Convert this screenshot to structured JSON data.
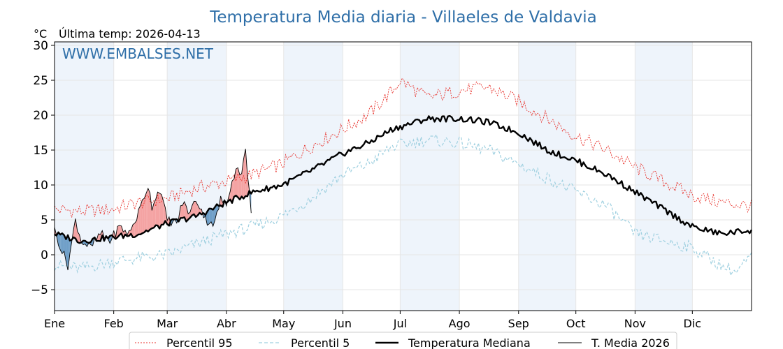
{
  "page": {
    "title": "Temperatura Media diaria - Villaeles de Valdavia",
    "unit": "°C",
    "last_temp_label": "Última temp: 2026-04-13",
    "watermark": "WWW.EMBALSES.NET"
  },
  "colors": {
    "title": "#2f6fa8",
    "p95": "#e8322c",
    "p5": "#9fd0e0",
    "median": "#000000",
    "current": "#000000",
    "above_fill": "#f4a3a3",
    "below_fill": "#6f9fc8",
    "band": "#eef4fb"
  },
  "chart_data": {
    "type": "line",
    "xlabel": "",
    "ylabel": "°C",
    "ylim": [
      -8,
      30.5
    ],
    "yticks": [
      -5,
      0,
      5,
      10,
      15,
      20,
      25,
      30
    ],
    "xlim": [
      1,
      366
    ],
    "month_labels": [
      "Ene",
      "Feb",
      "Mar",
      "Abr",
      "May",
      "Jun",
      "Jul",
      "Ago",
      "Sep",
      "Oct",
      "Nov",
      "Dic"
    ],
    "month_starts": [
      1,
      32,
      60,
      91,
      121,
      152,
      182,
      213,
      244,
      274,
      305,
      335
    ],
    "grid": true,
    "legend_position": "bottom",
    "series_keypoints": {
      "percentil_95": {
        "x": [
          1,
          15,
          31,
          45,
          60,
          75,
          91,
          105,
          120,
          135,
          152,
          165,
          178,
          182,
          196,
          213,
          228,
          244,
          259,
          274,
          290,
          305,
          320,
          335,
          350,
          365
        ],
        "y": [
          6.5,
          6.2,
          6.5,
          7.5,
          8,
          9.5,
          10.5,
          11.5,
          13,
          15.5,
          18,
          20,
          23.5,
          25,
          22.5,
          23.5,
          24,
          22,
          19.5,
          17,
          15,
          12.5,
          10.5,
          8.5,
          7.5,
          7
        ]
      },
      "percentil_5": {
        "x": [
          1,
          15,
          31,
          45,
          60,
          75,
          91,
          105,
          120,
          135,
          152,
          165,
          178,
          196,
          213,
          228,
          244,
          259,
          274,
          290,
          305,
          320,
          335,
          350,
          358,
          365
        ],
        "y": [
          -1.5,
          -2,
          -1,
          -0.5,
          0,
          1.5,
          3,
          4,
          5.5,
          8,
          11.5,
          13,
          15.5,
          16.5,
          16,
          15,
          13,
          11,
          9,
          7,
          3,
          2,
          1,
          -1.5,
          -2.5,
          -0.5
        ]
      },
      "temperatura_mediana": {
        "x": [
          1,
          15,
          31,
          45,
          60,
          75,
          91,
          105,
          120,
          135,
          152,
          165,
          178,
          196,
          213,
          228,
          244,
          259,
          274,
          290,
          305,
          320,
          335,
          350,
          365
        ],
        "y": [
          3,
          2,
          2.5,
          3,
          4.5,
          5.5,
          7.5,
          9,
          10,
          12,
          14.5,
          16,
          18,
          19.5,
          19.5,
          19,
          17.5,
          15,
          13.5,
          11.5,
          9,
          6.5,
          4,
          3,
          3.5
        ]
      },
      "t_media_2026": {
        "x": [
          1,
          5,
          8,
          12,
          15,
          20,
          25,
          30,
          35,
          40,
          45,
          50,
          52,
          56,
          60,
          65,
          68,
          72,
          75,
          78,
          80,
          85,
          88,
          91,
          94,
          97,
          99,
          101,
          103,
          104
        ],
        "y": [
          3.5,
          0.5,
          -1.5,
          5,
          2,
          1,
          3,
          2,
          4,
          3,
          6,
          10,
          7,
          9.5,
          5,
          4.5,
          7.5,
          6,
          8,
          6.5,
          5,
          4.5,
          8,
          7,
          11,
          12.5,
          11.5,
          15,
          9,
          5.5
        ]
      }
    },
    "series": [
      {
        "name": "Percentil 95",
        "style": "dotted-red"
      },
      {
        "name": "Percentil 5",
        "style": "dashed-lightblue"
      },
      {
        "name": "Temperatura Mediana",
        "style": "thick-black"
      },
      {
        "name": "T. Media 2026",
        "style": "thin-black"
      }
    ]
  }
}
